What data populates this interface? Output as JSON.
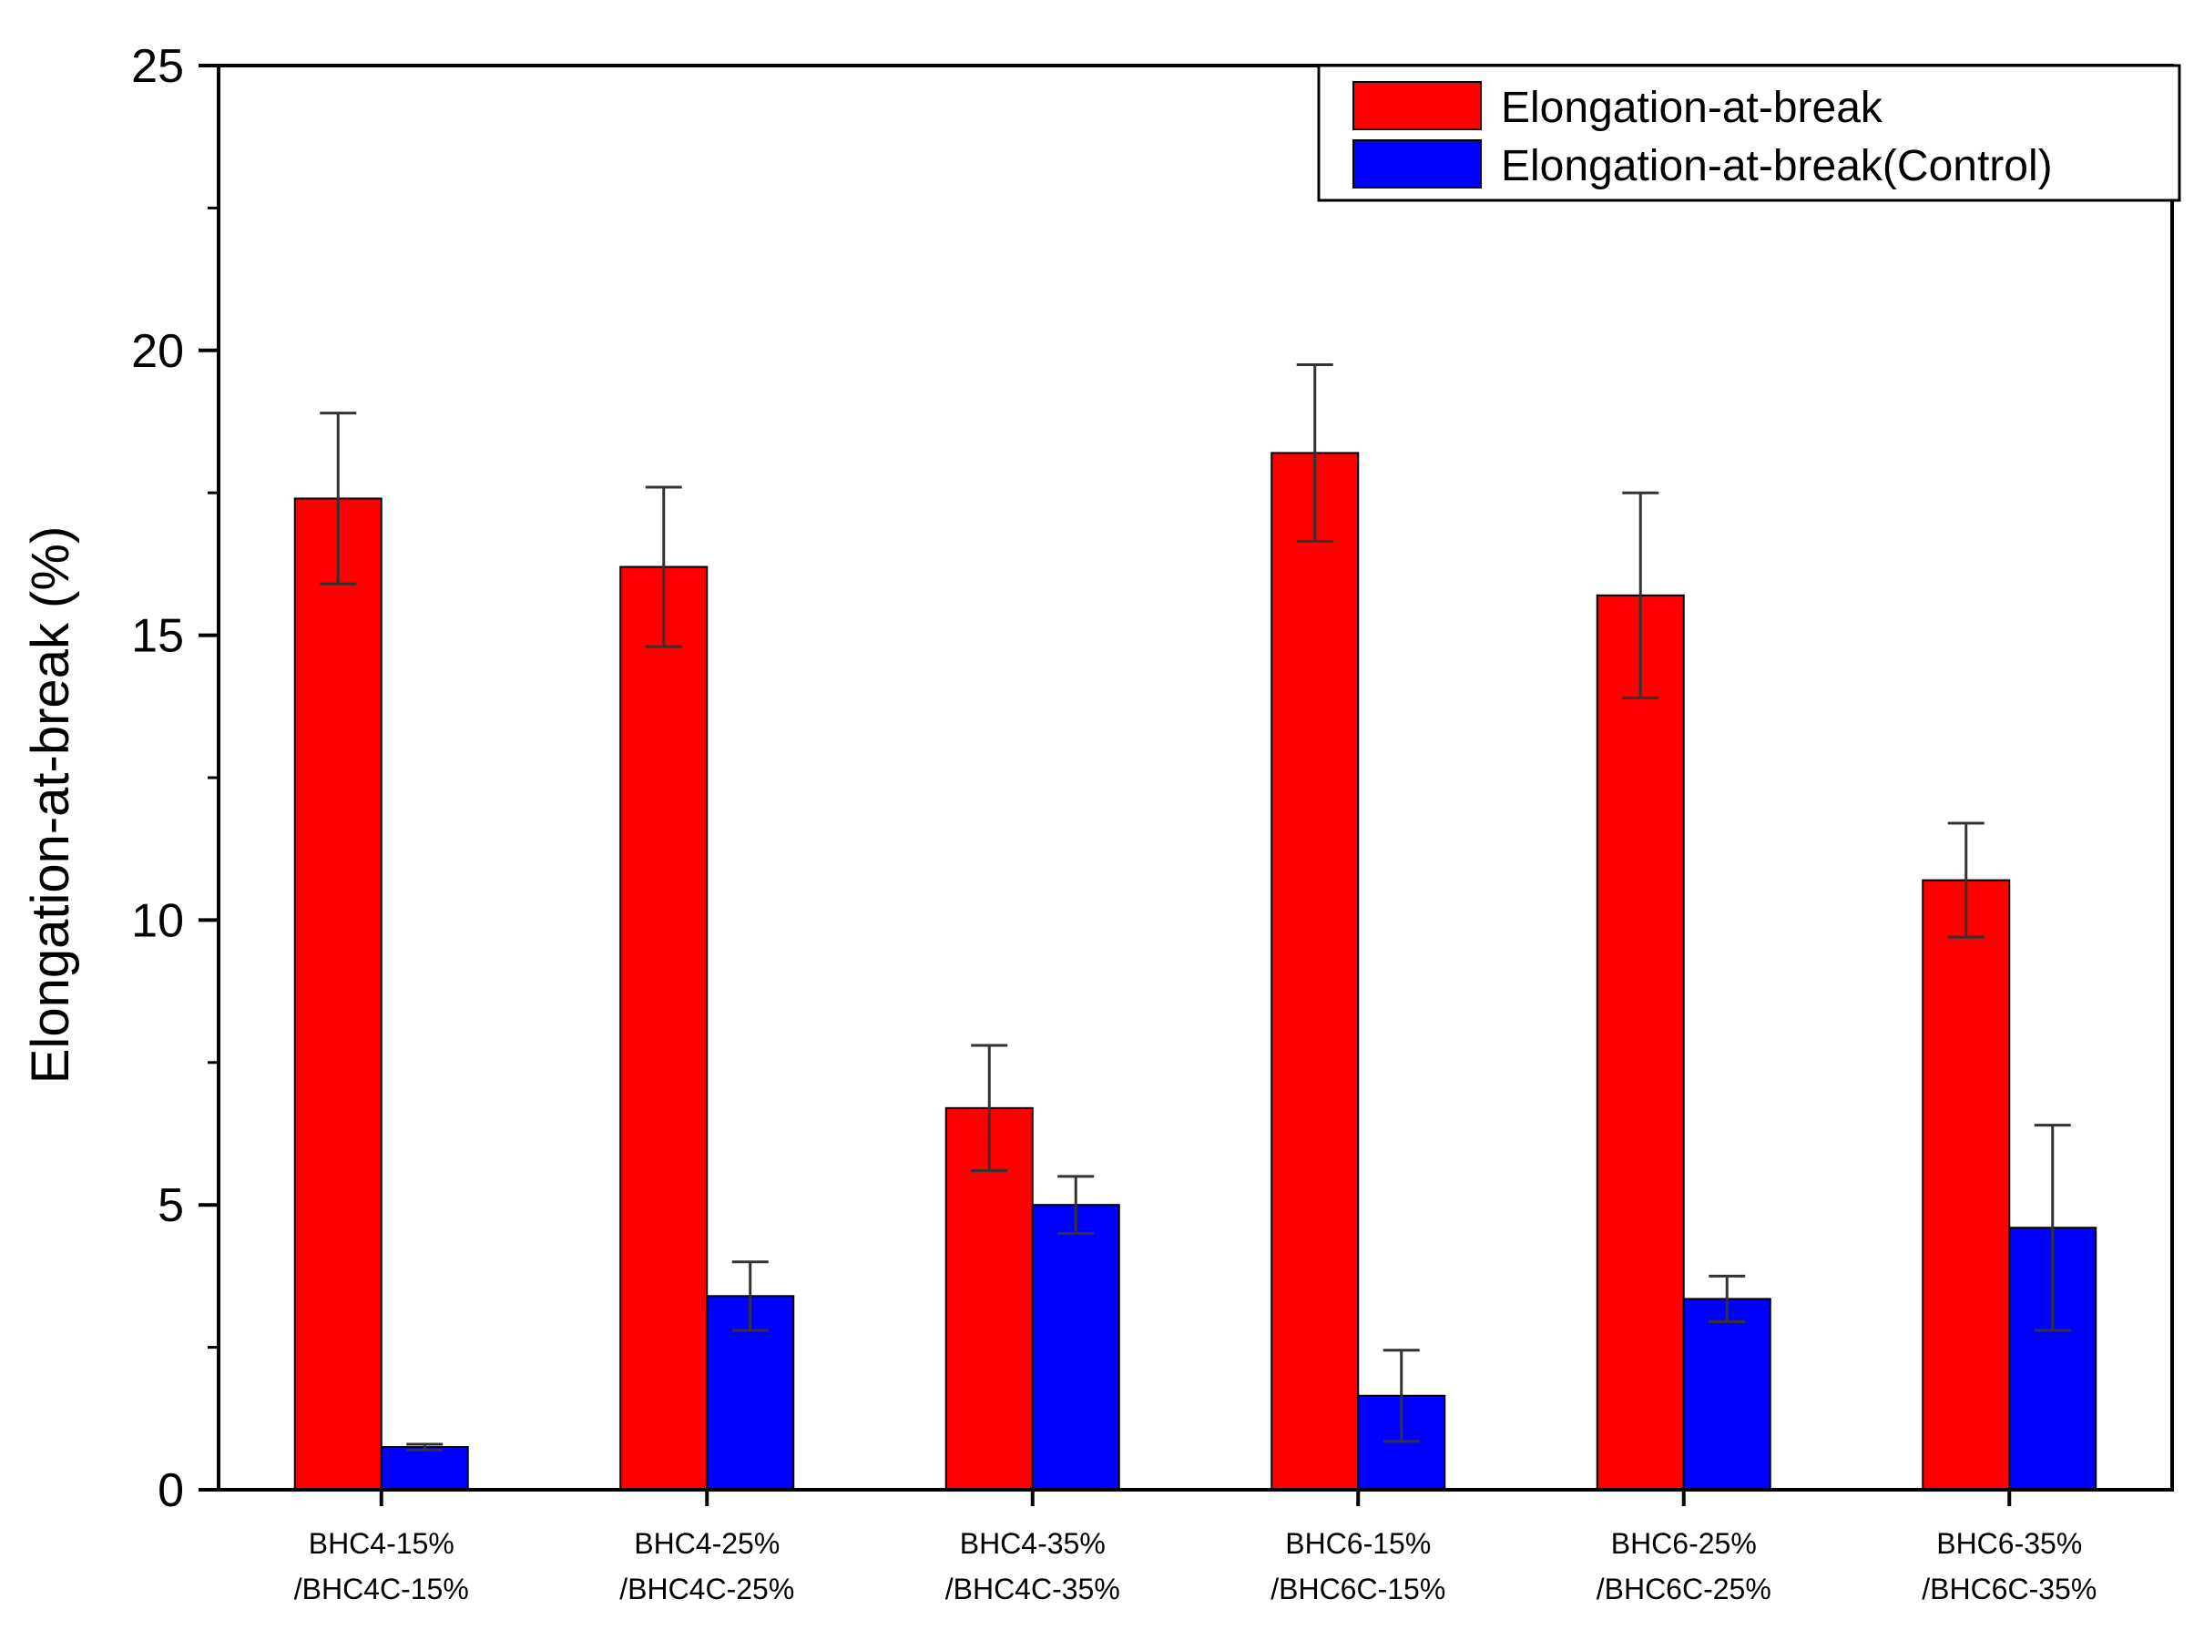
{
  "chart_data": {
    "type": "bar",
    "title": "",
    "xlabel": "",
    "ylabel": "Elongation-at-break (%)",
    "ylim": [
      0,
      25
    ],
    "yticks": [
      0,
      5,
      10,
      15,
      20,
      25
    ],
    "grid": false,
    "legend_position": "top-right",
    "categories": [
      [
        "BHC4-15%",
        "/BHC4C-15%"
      ],
      [
        "BHC4-25%",
        "/BHC4C-25%"
      ],
      [
        "BHC4-35%",
        "/BHC4C-35%"
      ],
      [
        "BHC6-15%",
        "/BHC6C-15%"
      ],
      [
        "BHC6-25%",
        "/BHC6C-25%"
      ],
      [
        "BHC6-35%",
        "/BHC6C-35%"
      ]
    ],
    "series": [
      {
        "name": "Elongation-at-break",
        "color": "#ff0000",
        "values": [
          17.4,
          16.2,
          6.7,
          18.2,
          15.7,
          10.7
        ],
        "errors": [
          1.5,
          1.4,
          1.1,
          1.55,
          1.8,
          1.0
        ]
      },
      {
        "name": "Elongation-at-break(Control)",
        "color": "#0000ff",
        "values": [
          0.75,
          3.4,
          5.0,
          1.65,
          3.35,
          4.6
        ],
        "errors": [
          0.05,
          0.6,
          0.5,
          0.8,
          0.4,
          1.8
        ]
      }
    ]
  }
}
